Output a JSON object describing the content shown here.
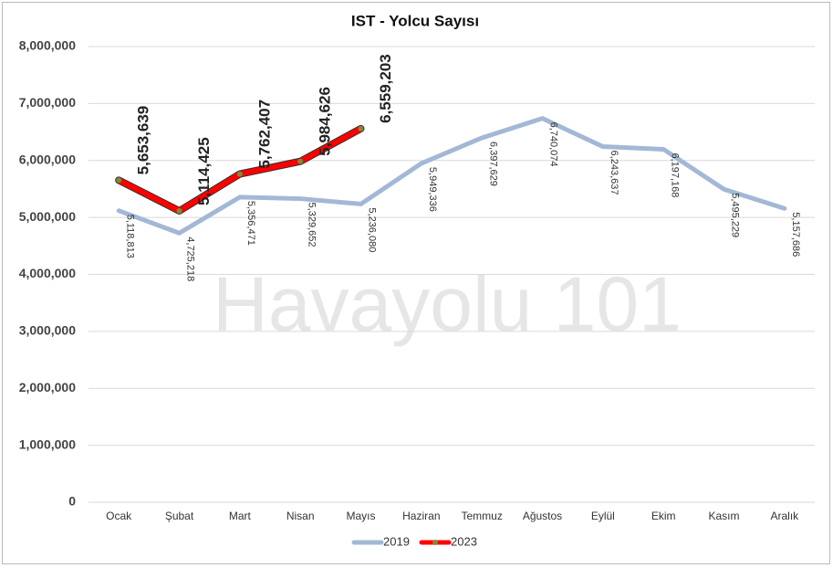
{
  "chart_data": {
    "type": "line",
    "title": "IST - Yolcu Sayısı",
    "watermark": "Havayolu 101",
    "categories": [
      "Ocak",
      "Şubat",
      "Mart",
      "Nisan",
      "Mayıs",
      "Haziran",
      "Temmuz",
      "Ağustos",
      "Eylül",
      "Ekim",
      "Kasım",
      "Aralık"
    ],
    "series": [
      {
        "name": "2019",
        "color": "#a2b8d6",
        "values": [
          5118813,
          4725218,
          5356471,
          5329652,
          5236080,
          5949336,
          6397629,
          6740074,
          6243637,
          6197168,
          5495229,
          5157686
        ],
        "value_labels": [
          "5,118,813",
          "4,725,218",
          "5,356,471",
          "5,329,652",
          "5,236,080",
          "5,949,336",
          "6,397,629",
          "6,740,074",
          "6,243,637",
          "6,197,168",
          "5,495,229",
          "5,157,686"
        ]
      },
      {
        "name": "2023",
        "color": "#ff0000",
        "marker_color": "#7f8c3a",
        "values": [
          5653639,
          5114425,
          5762407,
          5984626,
          6559203,
          null,
          null,
          null,
          null,
          null,
          null,
          null
        ],
        "value_labels": [
          "5,653,639",
          "5,114,425",
          "5,762,407",
          "5,984,626",
          "6,559,203",
          null,
          null,
          null,
          null,
          null,
          null,
          null
        ]
      }
    ],
    "ylim": [
      0,
      8000000
    ],
    "yticks": [
      0,
      {
        "value": 1000000,
        "label": "1,000,000"
      },
      {
        "value": 2000000,
        "label": "2,000,000"
      },
      {
        "value": 3000000,
        "label": "3,000,000"
      },
      {
        "value": 4000000,
        "label": "4,000,000"
      },
      {
        "value": 5000000,
        "label": "5,000,000"
      },
      {
        "value": 6000000,
        "label": "6,000,000"
      },
      {
        "value": 7000000,
        "label": "7,000,000"
      },
      {
        "value": 8000000,
        "label": "8,000,000"
      }
    ],
    "grid": true
  }
}
